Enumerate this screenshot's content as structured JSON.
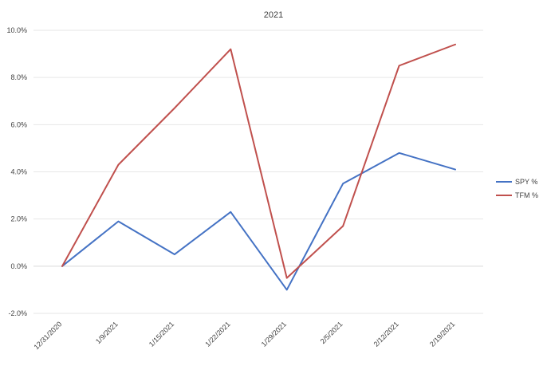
{
  "chart_data": {
    "type": "line",
    "title": "2021",
    "xlabel": "",
    "ylabel": "",
    "categories": [
      "12/31/2020",
      "1/9/2021",
      "1/15/2021",
      "1/22/2021",
      "1/29/2021",
      "2/5/2021",
      "2/12/2021",
      "2/19/2021"
    ],
    "y_tick_labels": [
      "-2.0%",
      "0.0%",
      "2.0%",
      "4.0%",
      "6.0%",
      "8.0%",
      "10.0%"
    ],
    "y_ticks": [
      -2,
      0,
      2,
      4,
      6,
      8,
      10
    ],
    "ylim": [
      -2,
      10
    ],
    "grid": true,
    "legend_position": "right",
    "series": [
      {
        "name": "SPY %",
        "color": "#4472c4",
        "values": [
          0.0,
          1.9,
          0.5,
          2.3,
          -1.0,
          3.5,
          4.8,
          4.1
        ]
      },
      {
        "name": "TFM %",
        "color": "#c0504d",
        "values": [
          0.0,
          4.3,
          6.7,
          9.2,
          -0.5,
          1.7,
          8.5,
          9.4
        ]
      }
    ]
  }
}
